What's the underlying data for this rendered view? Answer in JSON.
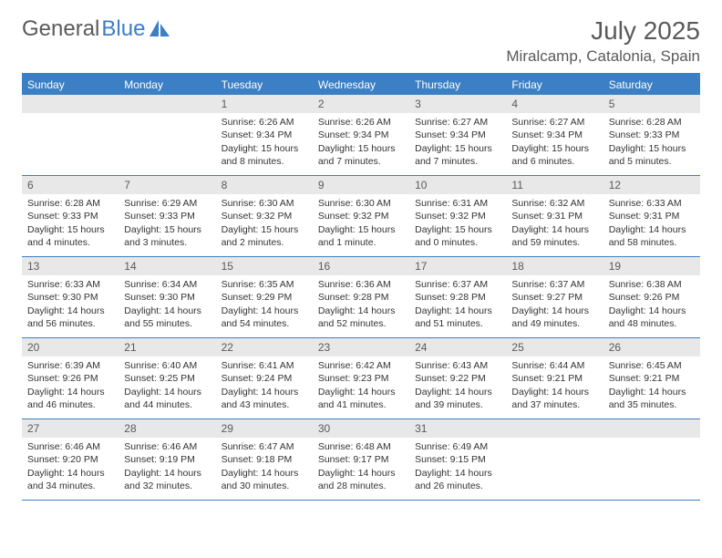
{
  "brand": {
    "word1": "General",
    "word2": "Blue"
  },
  "title": {
    "month_year": "July 2025",
    "location": "Miralcamp, Catalonia, Spain"
  },
  "colors": {
    "accent": "#3b7fc4",
    "header_bg": "#3b7fc4",
    "header_text": "#ffffff",
    "daynum_bg": "#e8e8e8",
    "body_text": "#333333",
    "brand_gray": "#5a5a5a"
  },
  "weekdays": [
    "Sunday",
    "Monday",
    "Tuesday",
    "Wednesday",
    "Thursday",
    "Friday",
    "Saturday"
  ],
  "weeks": [
    [
      {
        "empty": true
      },
      {
        "empty": true
      },
      {
        "num": "1",
        "sunrise": "Sunrise: 6:26 AM",
        "sunset": "Sunset: 9:34 PM",
        "daylight": "Daylight: 15 hours and 8 minutes."
      },
      {
        "num": "2",
        "sunrise": "Sunrise: 6:26 AM",
        "sunset": "Sunset: 9:34 PM",
        "daylight": "Daylight: 15 hours and 7 minutes."
      },
      {
        "num": "3",
        "sunrise": "Sunrise: 6:27 AM",
        "sunset": "Sunset: 9:34 PM",
        "daylight": "Daylight: 15 hours and 7 minutes."
      },
      {
        "num": "4",
        "sunrise": "Sunrise: 6:27 AM",
        "sunset": "Sunset: 9:34 PM",
        "daylight": "Daylight: 15 hours and 6 minutes."
      },
      {
        "num": "5",
        "sunrise": "Sunrise: 6:28 AM",
        "sunset": "Sunset: 9:33 PM",
        "daylight": "Daylight: 15 hours and 5 minutes."
      }
    ],
    [
      {
        "num": "6",
        "sunrise": "Sunrise: 6:28 AM",
        "sunset": "Sunset: 9:33 PM",
        "daylight": "Daylight: 15 hours and 4 minutes."
      },
      {
        "num": "7",
        "sunrise": "Sunrise: 6:29 AM",
        "sunset": "Sunset: 9:33 PM",
        "daylight": "Daylight: 15 hours and 3 minutes."
      },
      {
        "num": "8",
        "sunrise": "Sunrise: 6:30 AM",
        "sunset": "Sunset: 9:32 PM",
        "daylight": "Daylight: 15 hours and 2 minutes."
      },
      {
        "num": "9",
        "sunrise": "Sunrise: 6:30 AM",
        "sunset": "Sunset: 9:32 PM",
        "daylight": "Daylight: 15 hours and 1 minute."
      },
      {
        "num": "10",
        "sunrise": "Sunrise: 6:31 AM",
        "sunset": "Sunset: 9:32 PM",
        "daylight": "Daylight: 15 hours and 0 minutes."
      },
      {
        "num": "11",
        "sunrise": "Sunrise: 6:32 AM",
        "sunset": "Sunset: 9:31 PM",
        "daylight": "Daylight: 14 hours and 59 minutes."
      },
      {
        "num": "12",
        "sunrise": "Sunrise: 6:33 AM",
        "sunset": "Sunset: 9:31 PM",
        "daylight": "Daylight: 14 hours and 58 minutes."
      }
    ],
    [
      {
        "num": "13",
        "sunrise": "Sunrise: 6:33 AM",
        "sunset": "Sunset: 9:30 PM",
        "daylight": "Daylight: 14 hours and 56 minutes."
      },
      {
        "num": "14",
        "sunrise": "Sunrise: 6:34 AM",
        "sunset": "Sunset: 9:30 PM",
        "daylight": "Daylight: 14 hours and 55 minutes."
      },
      {
        "num": "15",
        "sunrise": "Sunrise: 6:35 AM",
        "sunset": "Sunset: 9:29 PM",
        "daylight": "Daylight: 14 hours and 54 minutes."
      },
      {
        "num": "16",
        "sunrise": "Sunrise: 6:36 AM",
        "sunset": "Sunset: 9:28 PM",
        "daylight": "Daylight: 14 hours and 52 minutes."
      },
      {
        "num": "17",
        "sunrise": "Sunrise: 6:37 AM",
        "sunset": "Sunset: 9:28 PM",
        "daylight": "Daylight: 14 hours and 51 minutes."
      },
      {
        "num": "18",
        "sunrise": "Sunrise: 6:37 AM",
        "sunset": "Sunset: 9:27 PM",
        "daylight": "Daylight: 14 hours and 49 minutes."
      },
      {
        "num": "19",
        "sunrise": "Sunrise: 6:38 AM",
        "sunset": "Sunset: 9:26 PM",
        "daylight": "Daylight: 14 hours and 48 minutes."
      }
    ],
    [
      {
        "num": "20",
        "sunrise": "Sunrise: 6:39 AM",
        "sunset": "Sunset: 9:26 PM",
        "daylight": "Daylight: 14 hours and 46 minutes."
      },
      {
        "num": "21",
        "sunrise": "Sunrise: 6:40 AM",
        "sunset": "Sunset: 9:25 PM",
        "daylight": "Daylight: 14 hours and 44 minutes."
      },
      {
        "num": "22",
        "sunrise": "Sunrise: 6:41 AM",
        "sunset": "Sunset: 9:24 PM",
        "daylight": "Daylight: 14 hours and 43 minutes."
      },
      {
        "num": "23",
        "sunrise": "Sunrise: 6:42 AM",
        "sunset": "Sunset: 9:23 PM",
        "daylight": "Daylight: 14 hours and 41 minutes."
      },
      {
        "num": "24",
        "sunrise": "Sunrise: 6:43 AM",
        "sunset": "Sunset: 9:22 PM",
        "daylight": "Daylight: 14 hours and 39 minutes."
      },
      {
        "num": "25",
        "sunrise": "Sunrise: 6:44 AM",
        "sunset": "Sunset: 9:21 PM",
        "daylight": "Daylight: 14 hours and 37 minutes."
      },
      {
        "num": "26",
        "sunrise": "Sunrise: 6:45 AM",
        "sunset": "Sunset: 9:21 PM",
        "daylight": "Daylight: 14 hours and 35 minutes."
      }
    ],
    [
      {
        "num": "27",
        "sunrise": "Sunrise: 6:46 AM",
        "sunset": "Sunset: 9:20 PM",
        "daylight": "Daylight: 14 hours and 34 minutes."
      },
      {
        "num": "28",
        "sunrise": "Sunrise: 6:46 AM",
        "sunset": "Sunset: 9:19 PM",
        "daylight": "Daylight: 14 hours and 32 minutes."
      },
      {
        "num": "29",
        "sunrise": "Sunrise: 6:47 AM",
        "sunset": "Sunset: 9:18 PM",
        "daylight": "Daylight: 14 hours and 30 minutes."
      },
      {
        "num": "30",
        "sunrise": "Sunrise: 6:48 AM",
        "sunset": "Sunset: 9:17 PM",
        "daylight": "Daylight: 14 hours and 28 minutes."
      },
      {
        "num": "31",
        "sunrise": "Sunrise: 6:49 AM",
        "sunset": "Sunset: 9:15 PM",
        "daylight": "Daylight: 14 hours and 26 minutes."
      },
      {
        "empty": true
      },
      {
        "empty": true
      }
    ]
  ]
}
